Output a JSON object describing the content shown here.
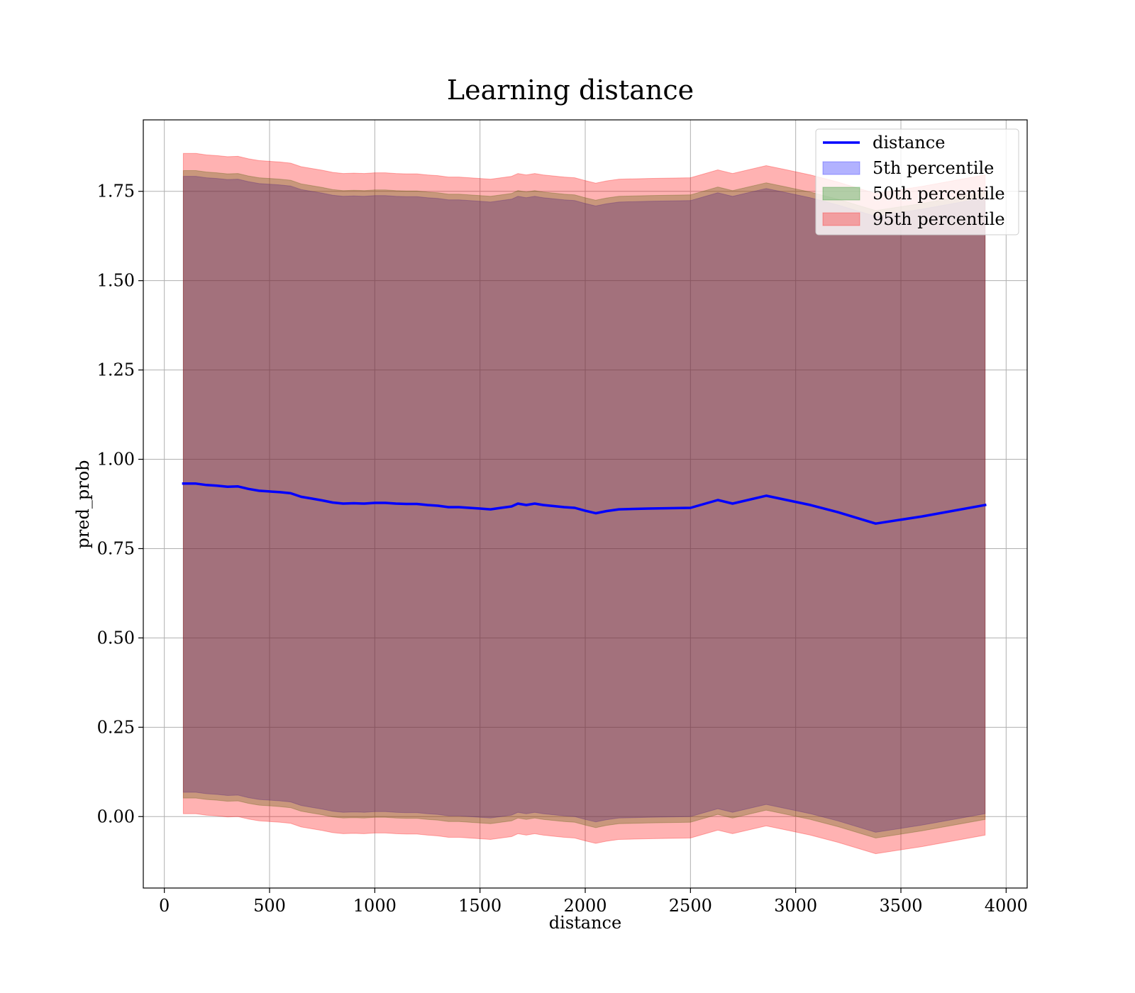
{
  "chart_data": {
    "type": "line",
    "title": "Learning distance",
    "xlabel": "distance",
    "ylabel": "pred_prob",
    "xlim": [
      -100,
      4100
    ],
    "ylim": [
      -0.2,
      1.95
    ],
    "xticks": [
      0,
      500,
      1000,
      1500,
      2000,
      2500,
      3000,
      3500,
      4000
    ],
    "xtick_labels": [
      "0",
      "500",
      "1000",
      "1500",
      "2000",
      "2500",
      "3000",
      "3500",
      "4000"
    ],
    "yticks": [
      0.0,
      0.25,
      0.5,
      0.75,
      1.0,
      1.25,
      1.5,
      1.75
    ],
    "ytick_labels": [
      "0.00",
      "0.25",
      "0.50",
      "0.75",
      "1.00",
      "1.25",
      "1.50",
      "1.75"
    ],
    "grid": true,
    "legend_position": "top-right",
    "x": [
      90,
      150,
      200,
      250,
      300,
      350,
      400,
      450,
      500,
      550,
      600,
      650,
      700,
      750,
      800,
      850,
      900,
      950,
      1000,
      1050,
      1100,
      1150,
      1200,
      1250,
      1300,
      1350,
      1400,
      1450,
      1500,
      1550,
      1600,
      1650,
      1680,
      1720,
      1760,
      1800,
      1850,
      1900,
      1950,
      2000,
      2050,
      2100,
      2160,
      2300,
      2500,
      2630,
      2700,
      2860,
      2950,
      3070,
      3200,
      3380,
      3600,
      3900
    ],
    "series": [
      {
        "name": "distance",
        "kind": "line",
        "color": "#0000ff",
        "values": [
          0.932,
          0.932,
          0.928,
          0.926,
          0.923,
          0.924,
          0.917,
          0.912,
          0.91,
          0.908,
          0.905,
          0.895,
          0.89,
          0.885,
          0.879,
          0.876,
          0.877,
          0.876,
          0.878,
          0.878,
          0.876,
          0.875,
          0.875,
          0.872,
          0.87,
          0.866,
          0.866,
          0.864,
          0.862,
          0.86,
          0.864,
          0.868,
          0.876,
          0.872,
          0.876,
          0.872,
          0.869,
          0.866,
          0.864,
          0.856,
          0.849,
          0.855,
          0.86,
          0.862,
          0.864,
          0.886,
          0.876,
          0.898,
          0.887,
          0.872,
          0.852,
          0.82,
          0.84,
          0.872
        ]
      },
      {
        "name": "5th percentile",
        "kind": "band",
        "color": "#0000ff",
        "lower": [
          0.068,
          0.068,
          0.064,
          0.062,
          0.059,
          0.06,
          0.053,
          0.048,
          0.046,
          0.044,
          0.041,
          0.031,
          0.026,
          0.021,
          0.015,
          0.012,
          0.013,
          0.012,
          0.014,
          0.014,
          0.012,
          0.011,
          0.011,
          0.008,
          0.006,
          0.002,
          0.002,
          0.0,
          -0.002,
          -0.004,
          0.0,
          0.004,
          0.012,
          0.008,
          0.012,
          0.008,
          0.005,
          0.002,
          0.0,
          -0.008,
          -0.015,
          -0.009,
          -0.004,
          -0.002,
          0.0,
          0.022,
          0.012,
          0.034,
          0.023,
          0.008,
          -0.012,
          -0.044,
          -0.024,
          0.008
        ],
        "upper": [
          1.792,
          1.792,
          1.788,
          1.786,
          1.783,
          1.784,
          1.777,
          1.772,
          1.77,
          1.768,
          1.765,
          1.755,
          1.75,
          1.745,
          1.739,
          1.736,
          1.737,
          1.736,
          1.738,
          1.738,
          1.736,
          1.735,
          1.735,
          1.732,
          1.73,
          1.726,
          1.726,
          1.724,
          1.722,
          1.72,
          1.724,
          1.728,
          1.736,
          1.732,
          1.736,
          1.732,
          1.729,
          1.726,
          1.724,
          1.716,
          1.709,
          1.715,
          1.72,
          1.722,
          1.724,
          1.746,
          1.736,
          1.758,
          1.747,
          1.732,
          1.712,
          1.68,
          1.7,
          1.732
        ]
      },
      {
        "name": "50th percentile",
        "kind": "band",
        "color": "#008000",
        "lower": [
          0.052,
          0.052,
          0.048,
          0.046,
          0.043,
          0.044,
          0.037,
          0.032,
          0.03,
          0.028,
          0.025,
          0.015,
          0.01,
          0.005,
          -0.001,
          -0.004,
          -0.003,
          -0.004,
          -0.002,
          -0.002,
          -0.004,
          -0.005,
          -0.005,
          -0.008,
          -0.01,
          -0.014,
          -0.014,
          -0.016,
          -0.018,
          -0.02,
          -0.016,
          -0.012,
          -0.004,
          -0.008,
          -0.004,
          -0.008,
          -0.011,
          -0.014,
          -0.016,
          -0.024,
          -0.031,
          -0.025,
          -0.02,
          -0.018,
          -0.016,
          0.006,
          -0.004,
          0.018,
          0.007,
          -0.008,
          -0.028,
          -0.06,
          -0.04,
          -0.008
        ],
        "upper": [
          1.808,
          1.808,
          1.804,
          1.802,
          1.799,
          1.8,
          1.793,
          1.788,
          1.786,
          1.784,
          1.781,
          1.771,
          1.766,
          1.761,
          1.755,
          1.752,
          1.753,
          1.752,
          1.754,
          1.754,
          1.752,
          1.751,
          1.751,
          1.748,
          1.746,
          1.742,
          1.742,
          1.74,
          1.738,
          1.736,
          1.74,
          1.744,
          1.752,
          1.748,
          1.752,
          1.748,
          1.745,
          1.742,
          1.74,
          1.732,
          1.725,
          1.731,
          1.736,
          1.738,
          1.74,
          1.762,
          1.752,
          1.774,
          1.763,
          1.748,
          1.728,
          1.696,
          1.716,
          1.748
        ]
      },
      {
        "name": "95th percentile",
        "kind": "band",
        "color": "#ff0000",
        "lower": [
          0.008,
          0.008,
          0.004,
          0.002,
          -0.001,
          0.0,
          -0.007,
          -0.012,
          -0.014,
          -0.016,
          -0.019,
          -0.029,
          -0.034,
          -0.039,
          -0.045,
          -0.048,
          -0.047,
          -0.048,
          -0.046,
          -0.046,
          -0.048,
          -0.049,
          -0.049,
          -0.052,
          -0.054,
          -0.058,
          -0.058,
          -0.06,
          -0.062,
          -0.064,
          -0.06,
          -0.056,
          -0.048,
          -0.052,
          -0.048,
          -0.052,
          -0.055,
          -0.058,
          -0.06,
          -0.068,
          -0.075,
          -0.069,
          -0.064,
          -0.062,
          -0.06,
          -0.038,
          -0.048,
          -0.026,
          -0.037,
          -0.052,
          -0.072,
          -0.104,
          -0.084,
          -0.052
        ],
        "upper": [
          1.856,
          1.856,
          1.852,
          1.85,
          1.847,
          1.848,
          1.841,
          1.836,
          1.834,
          1.832,
          1.829,
          1.819,
          1.814,
          1.809,
          1.803,
          1.8,
          1.801,
          1.8,
          1.802,
          1.802,
          1.8,
          1.799,
          1.799,
          1.796,
          1.794,
          1.79,
          1.79,
          1.788,
          1.786,
          1.784,
          1.788,
          1.792,
          1.8,
          1.796,
          1.8,
          1.796,
          1.793,
          1.79,
          1.788,
          1.78,
          1.773,
          1.779,
          1.784,
          1.786,
          1.788,
          1.81,
          1.8,
          1.822,
          1.811,
          1.796,
          1.776,
          1.744,
          1.764,
          1.796
        ]
      }
    ]
  }
}
